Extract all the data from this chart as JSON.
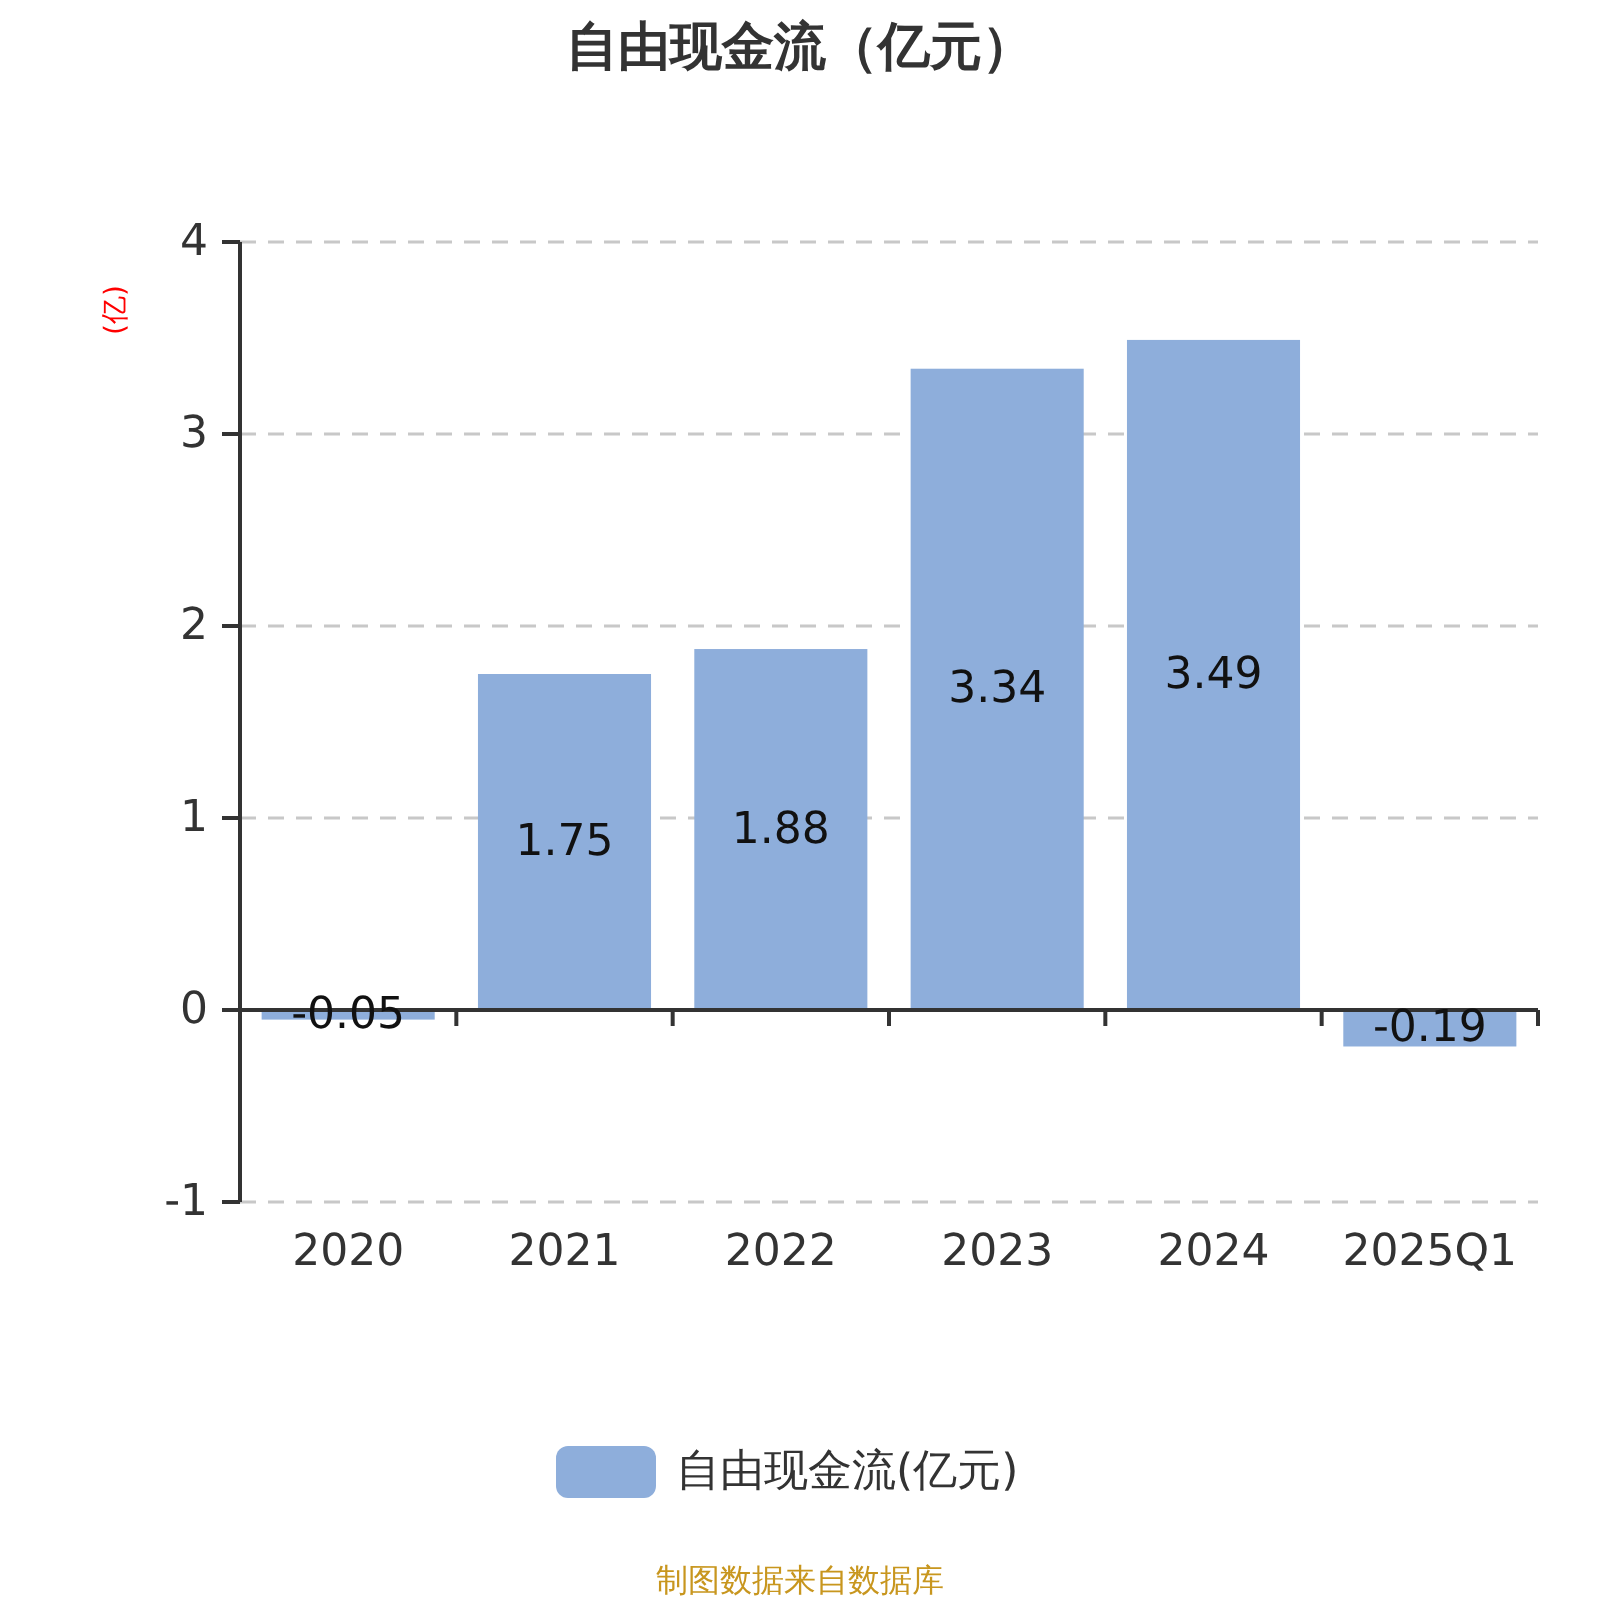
{
  "chart_data": {
    "type": "bar",
    "title": "自由现金流（亿元）",
    "ylabel": "(亿)",
    "categories": [
      "2020",
      "2021",
      "2022",
      "2023",
      "2024",
      "2025Q1"
    ],
    "series": [
      {
        "name": "自由现金流(亿元)",
        "color": "#8eaedb",
        "values": [
          -0.05,
          1.75,
          1.88,
          3.34,
          3.49,
          -0.19
        ]
      }
    ],
    "ylim": [
      -1,
      4
    ],
    "yticks": [
      -1,
      0,
      1,
      2,
      3,
      4
    ],
    "grid": "y",
    "legend": "bottom",
    "data_labels": true,
    "annotations": [
      "制图数据来自数据库"
    ]
  }
}
